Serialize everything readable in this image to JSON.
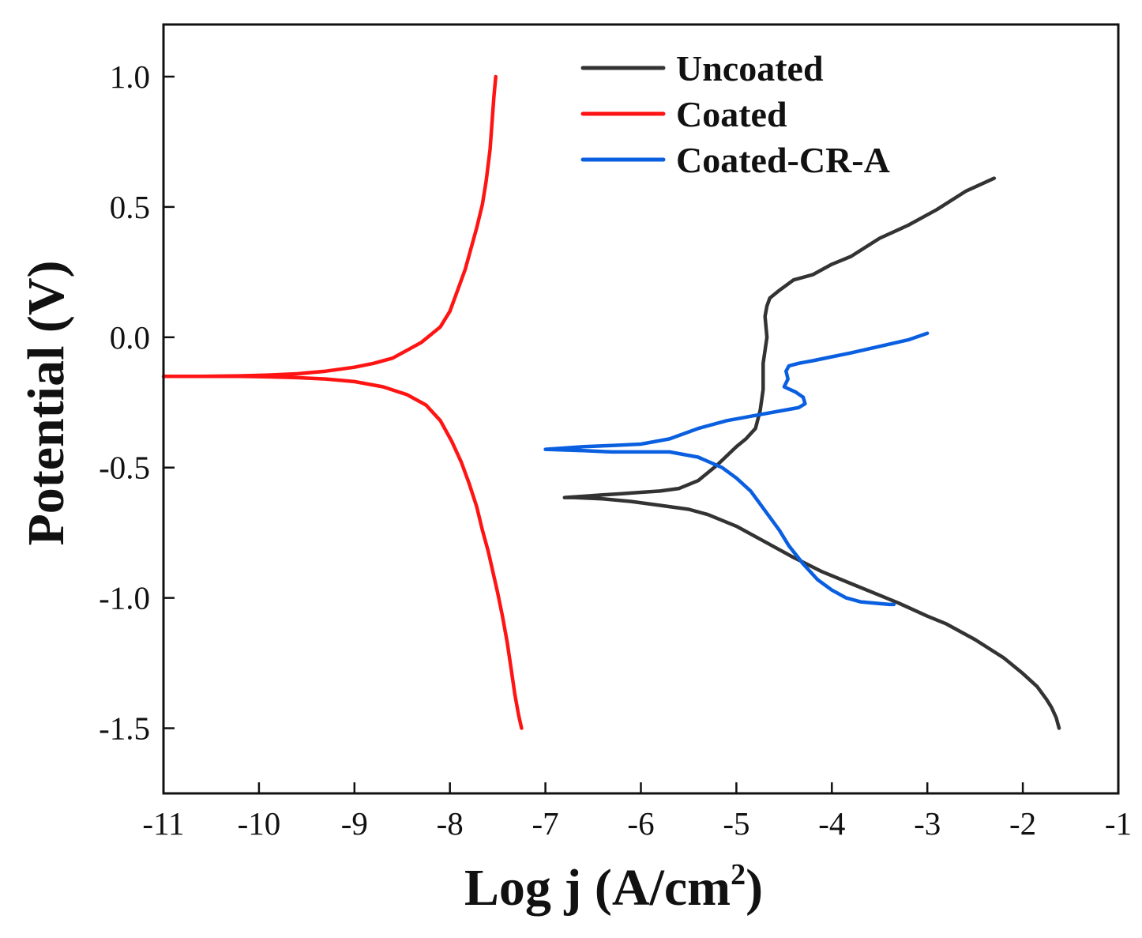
{
  "chart_data": {
    "type": "line",
    "title": "",
    "xlabel": "Log j (A/cm",
    "xlabel_sup": "2",
    "xlabel_close": ")",
    "ylabel": "Potential (V)",
    "xlim": [
      -11,
      -1
    ],
    "ylim": [
      -1.75,
      1.2
    ],
    "x_ticks": [
      -11,
      -10,
      -9,
      -8,
      -7,
      -6,
      -5,
      -4,
      -3,
      -2,
      -1
    ],
    "x_tick_labels": [
      "-11",
      "-10",
      "-9",
      "-8",
      "-7",
      "-6",
      "-5",
      "-4",
      "-3",
      "-2",
      "-1"
    ],
    "y_ticks": [
      1.0,
      0.5,
      0.0,
      -0.5,
      -1.0,
      -1.5
    ],
    "y_tick_labels": [
      "1.0",
      "0.5",
      "0.0",
      "-0.5",
      "-1.0",
      "-1.5"
    ],
    "legend_position": "top-right",
    "series": [
      {
        "name": "Uncoated",
        "color": "#333333",
        "x": [
          -2.3,
          -2.6,
          -2.9,
          -3.2,
          -3.5,
          -3.8,
          -4.0,
          -4.2,
          -4.4,
          -4.55,
          -4.65,
          -4.68,
          -4.7,
          -4.68,
          -4.7,
          -4.72,
          -4.72,
          -4.72,
          -4.75,
          -4.8,
          -4.9,
          -5.0,
          -5.2,
          -5.4,
          -5.6,
          -5.8,
          -6.0,
          -6.2,
          -6.4,
          -6.6,
          -6.8,
          -6.7,
          -6.4,
          -6.1,
          -5.8,
          -5.5,
          -5.3,
          -5.0,
          -4.7,
          -4.4,
          -4.1,
          -3.8,
          -3.5,
          -3.3,
          -3.0,
          -2.8,
          -2.5,
          -2.2,
          -2.0,
          -1.85,
          -1.75,
          -1.7,
          -1.65,
          -1.62
        ],
        "y": [
          0.61,
          0.56,
          0.49,
          0.43,
          0.38,
          0.31,
          0.28,
          0.24,
          0.22,
          0.18,
          0.15,
          0.12,
          0.08,
          0.0,
          -0.05,
          -0.1,
          -0.15,
          -0.2,
          -0.28,
          -0.35,
          -0.39,
          -0.42,
          -0.49,
          -0.55,
          -0.58,
          -0.59,
          -0.595,
          -0.6,
          -0.605,
          -0.61,
          -0.615,
          -0.615,
          -0.62,
          -0.63,
          -0.645,
          -0.66,
          -0.68,
          -0.725,
          -0.785,
          -0.845,
          -0.9,
          -0.945,
          -0.99,
          -1.02,
          -1.07,
          -1.1,
          -1.16,
          -1.23,
          -1.29,
          -1.34,
          -1.39,
          -1.42,
          -1.46,
          -1.5
        ]
      },
      {
        "name": "Coated",
        "color": "#ff1414",
        "x": [
          -7.52,
          -7.54,
          -7.56,
          -7.58,
          -7.62,
          -7.66,
          -7.72,
          -7.78,
          -7.84,
          -7.92,
          -8.0,
          -8.1,
          -8.2,
          -8.3,
          -8.45,
          -8.6,
          -8.8,
          -9.0,
          -9.3,
          -9.6,
          -9.9,
          -10.2,
          -10.6,
          -11.0,
          -10.6,
          -10.2,
          -9.9,
          -9.6,
          -9.3,
          -9.0,
          -8.7,
          -8.45,
          -8.25,
          -8.1,
          -7.98,
          -7.88,
          -7.8,
          -7.72,
          -7.66,
          -7.6,
          -7.55,
          -7.5,
          -7.45,
          -7.4,
          -7.36,
          -7.32,
          -7.28,
          -7.25
        ],
        "y": [
          1.0,
          0.92,
          0.82,
          0.72,
          0.6,
          0.51,
          0.42,
          0.34,
          0.26,
          0.18,
          0.1,
          0.04,
          0.01,
          -0.02,
          -0.05,
          -0.08,
          -0.1,
          -0.115,
          -0.13,
          -0.14,
          -0.145,
          -0.148,
          -0.15,
          -0.15,
          -0.15,
          -0.15,
          -0.152,
          -0.155,
          -0.16,
          -0.17,
          -0.19,
          -0.22,
          -0.26,
          -0.32,
          -0.4,
          -0.48,
          -0.56,
          -0.65,
          -0.74,
          -0.82,
          -0.9,
          -0.98,
          -1.07,
          -1.17,
          -1.27,
          -1.37,
          -1.45,
          -1.5
        ]
      },
      {
        "name": "Coated-CR-A",
        "color": "#0a5fe0",
        "x": [
          -3.0,
          -3.2,
          -3.5,
          -3.8,
          -4.0,
          -4.2,
          -4.35,
          -4.45,
          -4.48,
          -4.46,
          -4.5,
          -4.44,
          -4.38,
          -4.3,
          -4.28,
          -4.35,
          -4.5,
          -4.8,
          -5.1,
          -5.4,
          -5.7,
          -6.0,
          -6.3,
          -6.6,
          -7.0,
          -6.6,
          -6.3,
          -6.0,
          -5.7,
          -5.4,
          -5.15,
          -5.0,
          -4.85,
          -4.75,
          -4.65,
          -4.55,
          -4.45,
          -4.3,
          -4.15,
          -4.0,
          -3.85,
          -3.7,
          -3.55,
          -3.4,
          -3.35
        ],
        "y": [
          0.015,
          -0.01,
          -0.035,
          -0.06,
          -0.075,
          -0.09,
          -0.1,
          -0.11,
          -0.13,
          -0.16,
          -0.19,
          -0.2,
          -0.21,
          -0.23,
          -0.255,
          -0.27,
          -0.28,
          -0.3,
          -0.32,
          -0.35,
          -0.39,
          -0.41,
          -0.415,
          -0.42,
          -0.43,
          -0.435,
          -0.44,
          -0.44,
          -0.44,
          -0.46,
          -0.5,
          -0.54,
          -0.59,
          -0.64,
          -0.69,
          -0.74,
          -0.8,
          -0.87,
          -0.93,
          -0.97,
          -1.0,
          -1.015,
          -1.02,
          -1.025,
          -1.025
        ]
      }
    ]
  }
}
